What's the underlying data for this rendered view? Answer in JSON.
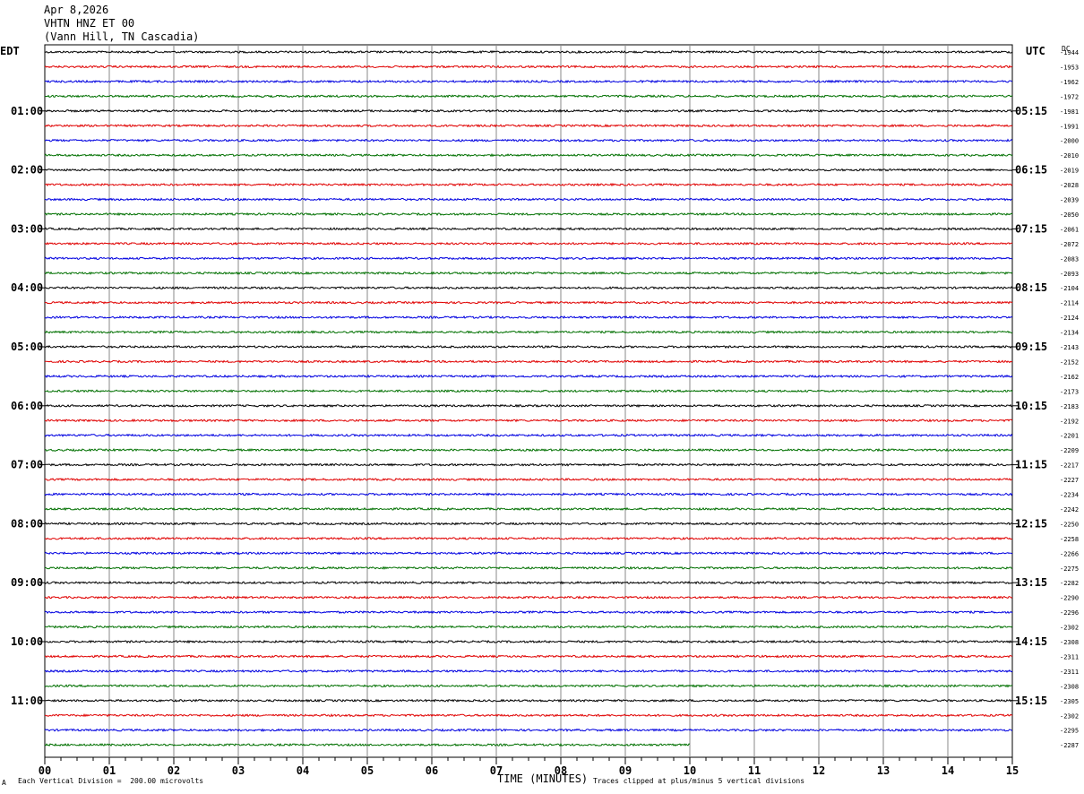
{
  "header": {
    "date": "Apr 8,2026",
    "station": "VHTN HNZ ET 00",
    "location": "(Vann Hill, TN Cascadia)"
  },
  "left_tz": "EDT",
  "right_tz": "UTC",
  "dc_label": "DC",
  "footer": {
    "scale_note": "Each Vertical Division =  200.00 microvolts",
    "clip_note": "Traces clipped at plus/minus 5 vertical divisions",
    "corner_mark": "A"
  },
  "chart_data": {
    "type": "line",
    "title": "",
    "xlabel": "TIME (MINUTES)",
    "ylabel": "",
    "xlim": [
      0,
      15
    ],
    "x_ticks": [
      "00",
      "01",
      "02",
      "03",
      "04",
      "05",
      "06",
      "07",
      "08",
      "09",
      "10",
      "11",
      "12",
      "13",
      "14",
      "15"
    ],
    "grid": true,
    "trace_minutes_per_line": 15,
    "trace_colors": [
      "#000000",
      "#e00000",
      "#0000e0",
      "#007000"
    ],
    "last_trace_end_minute": 10,
    "left_hour_labels": [
      "01:00",
      "02:00",
      "03:00",
      "04:00",
      "05:00",
      "06:00",
      "07:00",
      "08:00",
      "09:00",
      "10:00",
      "11:00"
    ],
    "right_hour_labels": [
      "05:15",
      "06:15",
      "07:15",
      "08:15",
      "09:15",
      "10:15",
      "11:15",
      "12:15",
      "13:15",
      "14:15",
      "15:15"
    ],
    "dc_offsets": [
      "-1944",
      "-1953",
      "-1962",
      "-1972",
      "-1981",
      "-1991",
      "-2000",
      "-2010",
      "-2019",
      "-2028",
      "-2039",
      "-2050",
      "-2061",
      "-2072",
      "-2083",
      "-2093",
      "-2104",
      "-2114",
      "-2124",
      "-2134",
      "-2143",
      "-2152",
      "-2162",
      "-2173",
      "-2183",
      "-2192",
      "-2201",
      "-2209",
      "-2217",
      "-2227",
      "-2234",
      "-2242",
      "-2250",
      "-2258",
      "-2266",
      "-2275",
      "-2282",
      "-2290",
      "-2296",
      "-2302",
      "-2308",
      "-2311",
      "-2311",
      "-2308",
      "-2305",
      "-2302",
      "-2295",
      "-2287"
    ]
  }
}
